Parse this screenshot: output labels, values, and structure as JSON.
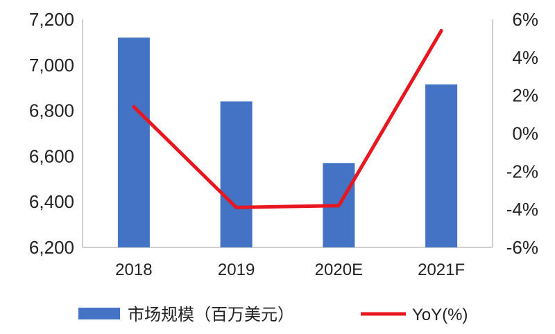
{
  "chart_data": {
    "type": "bar+line",
    "categories": [
      "2018",
      "2019",
      "2020E",
      "2021F"
    ],
    "series": [
      {
        "name": "市场规模（百万美元）",
        "type": "bar",
        "axis": "left",
        "values": [
          7120,
          6840,
          6570,
          6915
        ],
        "color": "#4472C4"
      },
      {
        "name": "YoY(%)",
        "type": "line",
        "axis": "right",
        "values": [
          1.4,
          -3.9,
          -3.8,
          5.4
        ],
        "color": "#E8161F"
      }
    ],
    "y_left": {
      "range": [
        6200,
        7200
      ],
      "ticks": [
        7200,
        7000,
        6800,
        6600,
        6400,
        6200
      ],
      "tick_labels": [
        "7,200",
        "7,000",
        "6,800",
        "6,600",
        "6,400",
        "6,200"
      ]
    },
    "y_right": {
      "range": [
        -6,
        6
      ],
      "ticks": [
        6,
        4,
        2,
        0,
        -2,
        -4,
        -6
      ],
      "tick_labels": [
        "6%",
        "4%",
        "2%",
        "0%",
        "-2%",
        "-4%",
        "-6%"
      ]
    },
    "grid": false,
    "legend_position": "bottom"
  }
}
